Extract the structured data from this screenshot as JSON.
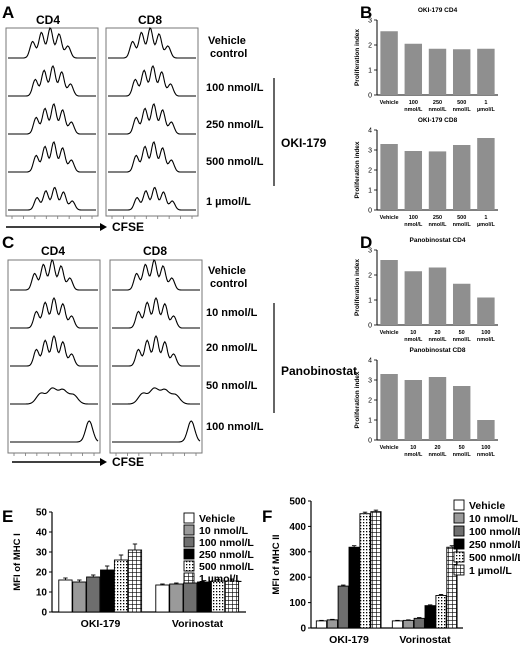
{
  "panels": {
    "A": {
      "letter": "A",
      "col1": "CD4",
      "col2": "CD8",
      "rows": [
        "Vehicle",
        "100 nmol/L",
        "250 nmol/L",
        "500 nmol/L",
        "1 µmol/L"
      ],
      "vehicle_line2": "control",
      "group": "OKI-179",
      "axis": "CFSE"
    },
    "C": {
      "letter": "C",
      "col1": "CD4",
      "col2": "CD8",
      "rows": [
        "Vehicle",
        "10 nmol/L",
        "20 nmol/L",
        "50 nmol/L",
        "100 nmol/L"
      ],
      "vehicle_line2": "control",
      "group": "Panobinostat",
      "axis": "CFSE"
    },
    "B": {
      "letter": "B"
    },
    "D": {
      "letter": "D"
    },
    "E": {
      "letter": "E"
    },
    "F": {
      "letter": "F"
    }
  },
  "chart_data": [
    {
      "id": "B1",
      "type": "bar",
      "title": "OKI-179 CD4",
      "ylabel": "Proliferation index",
      "categories": [
        [
          "Vehicle"
        ],
        [
          "100",
          "nmol/L"
        ],
        [
          "250",
          "nmol/L"
        ],
        [
          "500",
          "nmol/L"
        ],
        [
          "1",
          "µmol/L"
        ]
      ],
      "values": [
        2.55,
        2.05,
        1.85,
        1.83,
        1.85
      ],
      "ylim": [
        0,
        3
      ],
      "yticks": [
        0,
        1,
        2,
        3
      ],
      "color": "#8f8f8f"
    },
    {
      "id": "B2",
      "type": "bar",
      "title": "OKI-179 CD8",
      "ylabel": "Proliferation index",
      "categories": [
        [
          "Vehicle"
        ],
        [
          "100",
          "nmol/L"
        ],
        [
          "250",
          "nmol/L"
        ],
        [
          "500",
          "nmol/L"
        ],
        [
          "1",
          "µmol/L"
        ]
      ],
      "values": [
        3.3,
        2.95,
        2.93,
        3.25,
        3.6
      ],
      "ylim": [
        0,
        4
      ],
      "yticks": [
        0,
        1,
        2,
        3,
        4
      ],
      "color": "#8f8f8f"
    },
    {
      "id": "D1",
      "type": "bar",
      "title": "Panobinostat CD4",
      "ylabel": "Proliferation index",
      "categories": [
        [
          "Vehicle"
        ],
        [
          "10",
          "nmol/L"
        ],
        [
          "20",
          "nmol/L"
        ],
        [
          "50",
          "nmol/L"
        ],
        [
          "100",
          "nmol/L"
        ]
      ],
      "values": [
        2.6,
        2.15,
        2.3,
        1.65,
        1.1
      ],
      "ylim": [
        0,
        3
      ],
      "yticks": [
        0,
        1,
        2,
        3
      ],
      "color": "#8f8f8f"
    },
    {
      "id": "D2",
      "type": "bar",
      "title": "Panobinostat CD8",
      "ylabel": "Proliferation index",
      "categories": [
        [
          "Vehicle"
        ],
        [
          "10",
          "nmol/L"
        ],
        [
          "20",
          "nmol/L"
        ],
        [
          "50",
          "nmol/L"
        ],
        [
          "100",
          "nmol/L"
        ]
      ],
      "values": [
        3.3,
        3.0,
        3.15,
        2.7,
        1.0
      ],
      "ylim": [
        0,
        4
      ],
      "yticks": [
        0,
        1,
        2,
        3,
        4
      ],
      "color": "#8f8f8f"
    },
    {
      "id": "E",
      "type": "bar",
      "ylabel": "MFI of MHC I",
      "groups": [
        "OKI-179",
        "Vorinostat"
      ],
      "series": [
        {
          "name": "Vehicle",
          "values": [
            16,
            13.5
          ],
          "errors": [
            1,
            0.5
          ]
        },
        {
          "name": "10 nmol/L",
          "values": [
            15,
            14
          ],
          "errors": [
            1,
            0.5
          ]
        },
        {
          "name": "100 nmol/L",
          "values": [
            17.5,
            14.5
          ],
          "errors": [
            1,
            0.7
          ]
        },
        {
          "name": "250 nmol/L",
          "values": [
            21,
            15
          ],
          "errors": [
            2,
            0.7
          ]
        },
        {
          "name": "500 nmol/L",
          "values": [
            26,
            15.5
          ],
          "errors": [
            2.5,
            0.8
          ]
        },
        {
          "name": "1 µmol/L",
          "values": [
            31,
            15.5
          ],
          "errors": [
            3,
            1
          ]
        }
      ],
      "ylim": [
        0,
        50
      ],
      "yticks": [
        0,
        10,
        20,
        30,
        40,
        50
      ]
    },
    {
      "id": "F",
      "type": "bar",
      "ylabel": "MFI of MHC II",
      "groups": [
        "OKI-179",
        "Vorinostat"
      ],
      "series": [
        {
          "name": "Vehicle",
          "values": [
            28,
            28
          ],
          "errors": [
            2,
            2
          ]
        },
        {
          "name": "10 nmol/L",
          "values": [
            32,
            30
          ],
          "errors": [
            2,
            2
          ]
        },
        {
          "name": "100 nmol/L",
          "values": [
            165,
            38
          ],
          "errors": [
            4,
            3
          ]
        },
        {
          "name": "250 nmol/L",
          "values": [
            318,
            88
          ],
          "errors": [
            6,
            3
          ]
        },
        {
          "name": "500 nmol/L",
          "values": [
            450,
            128
          ],
          "errors": [
            6,
            4
          ]
        },
        {
          "name": "1 µmol/L",
          "values": [
            458,
            318
          ],
          "errors": [
            6,
            6
          ]
        }
      ],
      "ylim": [
        0,
        500
      ],
      "yticks": [
        0,
        100,
        200,
        300,
        400,
        500
      ]
    }
  ]
}
